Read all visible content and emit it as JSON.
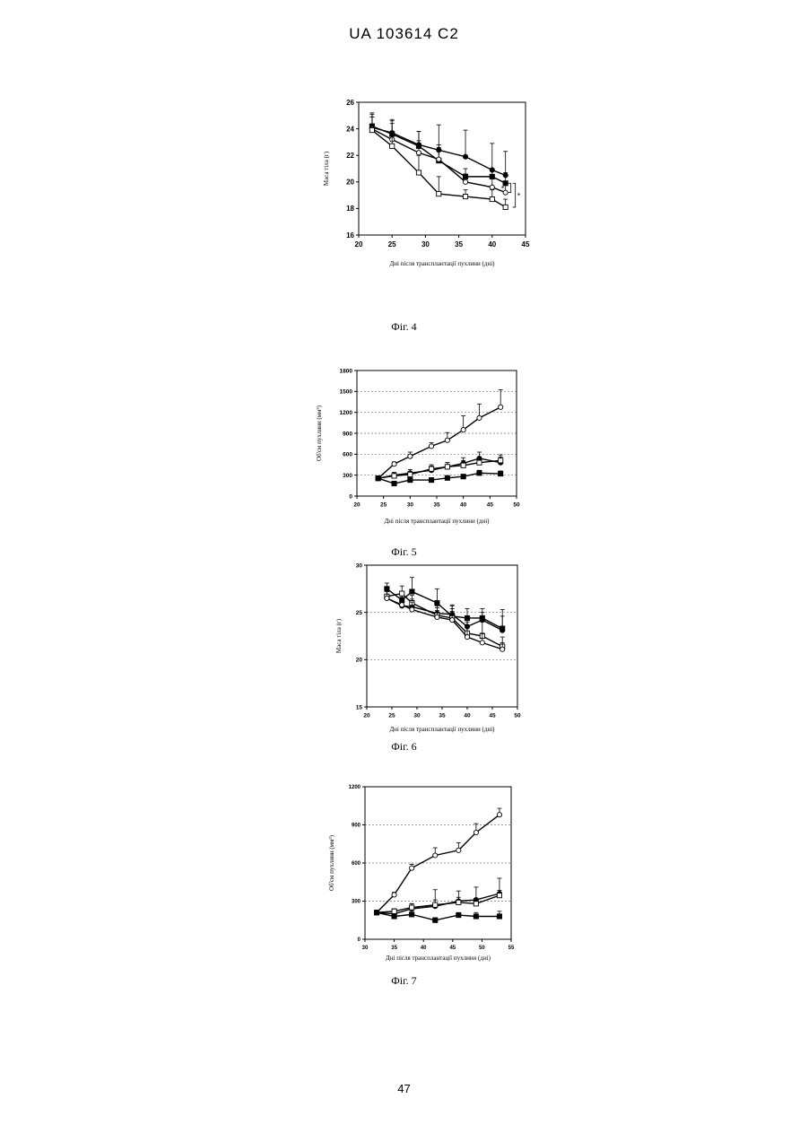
{
  "header": "UA   103614   C2",
  "page_number": "47",
  "chart_data": [
    {
      "type": "line",
      "caption": "Фіг. 4",
      "xlabel": "Дні після трансплантації пухлини (дні)",
      "ylabel": "Маса тіла   (г)",
      "xlim": [
        20,
        45
      ],
      "ylim": [
        16,
        26
      ],
      "xticks": [
        20,
        25,
        30,
        35,
        40,
        45
      ],
      "yticks": [
        16,
        18,
        20,
        22,
        24,
        26
      ],
      "grid": false,
      "annotations": [
        "*",
        "*"
      ],
      "series": [
        {
          "marker": "filled-circle",
          "x": [
            22,
            25,
            29,
            32,
            36,
            40,
            42
          ],
          "y": [
            24.1,
            23.7,
            22.8,
            22.4,
            21.9,
            20.9,
            20.5
          ],
          "err": [
            0.8,
            1.0,
            1.0,
            1.9,
            2.0,
            2.0,
            1.8
          ]
        },
        {
          "marker": "filled-square",
          "x": [
            22,
            25,
            29,
            32,
            36,
            40,
            42
          ],
          "y": [
            24.2,
            23.6,
            22.7,
            21.6,
            20.4,
            20.4,
            19.9
          ],
          "err": [
            0.9,
            1.0,
            1.1,
            1.0,
            0.6,
            0.6,
            0.8
          ]
        },
        {
          "marker": "open-circle",
          "x": [
            22,
            25,
            29,
            32,
            36,
            40,
            42
          ],
          "y": [
            24.0,
            23.2,
            22.2,
            21.7,
            20.0,
            19.6,
            19.2
          ],
          "err": [
            0.9,
            1.2,
            0.9,
            1.1,
            0.6,
            0.7,
            0.7
          ]
        },
        {
          "marker": "open-square",
          "x": [
            22,
            25,
            29,
            32,
            36,
            40,
            42
          ],
          "y": [
            23.9,
            22.7,
            20.7,
            19.1,
            18.9,
            18.7,
            18.1
          ],
          "err": [
            1.3,
            1.1,
            1.3,
            1.3,
            0.5,
            0.7,
            0.6
          ]
        }
      ]
    },
    {
      "type": "line",
      "caption": "Фіг. 5",
      "xlabel": "Дні після трансплантації пухлини (дні)",
      "ylabel": "Об'єм пухлини   (мм³)",
      "xlim": [
        20,
        50
      ],
      "ylim": [
        0,
        1800
      ],
      "xticks": [
        20,
        25,
        30,
        35,
        40,
        45,
        50
      ],
      "yticks": [
        0,
        300,
        600,
        900,
        1200,
        1500,
        1800
      ],
      "grid": true,
      "series": [
        {
          "marker": "open-circle",
          "x": [
            24,
            27,
            30,
            34,
            37,
            40,
            43,
            47
          ],
          "y": [
            255,
            460,
            570,
            715,
            800,
            950,
            1120,
            1275
          ],
          "err": [
            0,
            30,
            60,
            50,
            110,
            200,
            200,
            250
          ]
        },
        {
          "marker": "filled-circle",
          "x": [
            24,
            27,
            30,
            34,
            37,
            40,
            43,
            47
          ],
          "y": [
            255,
            300,
            330,
            370,
            420,
            470,
            540,
            480
          ],
          "err": [
            0,
            40,
            50,
            60,
            60,
            80,
            90,
            80
          ]
        },
        {
          "marker": "open-square",
          "x": [
            24,
            27,
            30,
            34,
            37,
            40,
            43,
            47
          ],
          "y": [
            255,
            290,
            310,
            390,
            420,
            440,
            480,
            510
          ],
          "err": [
            0,
            30,
            40,
            60,
            60,
            70,
            80,
            80
          ]
        },
        {
          "marker": "filled-square",
          "x": [
            24,
            27,
            30,
            34,
            37,
            40,
            43,
            47
          ],
          "y": [
            255,
            180,
            230,
            230,
            260,
            280,
            330,
            320
          ],
          "err": [
            0,
            20,
            25,
            30,
            30,
            30,
            40,
            40
          ]
        }
      ]
    },
    {
      "type": "line",
      "caption": "Фіг. 6",
      "xlabel": "Дні після трансплантації пухлини (дні)",
      "ylabel": "Маса тіла   (г)",
      "xlim": [
        20,
        50
      ],
      "ylim": [
        15,
        30
      ],
      "xticks": [
        20,
        25,
        30,
        35,
        40,
        45,
        50
      ],
      "yticks": [
        15,
        20,
        25,
        30
      ],
      "grid": true,
      "series": [
        {
          "marker": "filled-square",
          "x": [
            24,
            27,
            29,
            34,
            37,
            40,
            43,
            47
          ],
          "y": [
            27.5,
            26.3,
            27.2,
            26.0,
            24.6,
            24.4,
            24.4,
            23.3
          ],
          "err": [
            0.6,
            0.8,
            1.5,
            1.5,
            1.2,
            1.0,
            0.6,
            2.0
          ]
        },
        {
          "marker": "filled-circle",
          "x": [
            24,
            27,
            29,
            34,
            37,
            40,
            43,
            47
          ],
          "y": [
            26.5,
            25.7,
            25.6,
            24.9,
            24.8,
            23.5,
            24.2,
            23.1
          ],
          "err": [
            0.8,
            0.8,
            0.8,
            0.8,
            0.9,
            0.9,
            1.2,
            1.5
          ]
        },
        {
          "marker": "open-square",
          "x": [
            24,
            27,
            29,
            34,
            37,
            40,
            43,
            47
          ],
          "y": [
            26.7,
            27.0,
            26.0,
            24.7,
            24.4,
            22.8,
            22.5,
            21.4
          ],
          "err": [
            0.7,
            0.8,
            0.8,
            0.8,
            1.0,
            1.2,
            1.5,
            1.0
          ]
        },
        {
          "marker": "open-circle",
          "x": [
            24,
            27,
            29,
            34,
            37,
            40,
            43,
            47
          ],
          "y": [
            26.5,
            25.8,
            25.3,
            24.5,
            24.2,
            22.4,
            21.8,
            21.1
          ],
          "err": [
            0.7,
            0.8,
            0.8,
            0.7,
            0.9,
            1.2,
            1.0,
            0.7
          ]
        }
      ]
    },
    {
      "type": "line",
      "caption": "Фіг. 7",
      "xlabel": "Дні після трансплантації пухлини (дні)",
      "ylabel": "Об'єм пухлини   (мм³)",
      "xlim": [
        30,
        55
      ],
      "ylim": [
        0,
        1200
      ],
      "xticks": [
        30,
        35,
        40,
        45,
        50,
        55
      ],
      "yticks": [
        0,
        300,
        600,
        900,
        1200
      ],
      "ytick_labels": [
        "0",
        "300",
        "600",
        "900",
        "1200"
      ],
      "grid": true,
      "series": [
        {
          "marker": "open-circle",
          "x": [
            32,
            35,
            38,
            42,
            46,
            49,
            53
          ],
          "y": [
            210,
            350,
            560,
            660,
            700,
            840,
            980
          ],
          "err": [
            0,
            20,
            30,
            60,
            60,
            70,
            50
          ]
        },
        {
          "marker": "filled-circle",
          "x": [
            32,
            35,
            38,
            42,
            46,
            49,
            53
          ],
          "y": [
            210,
            200,
            240,
            260,
            300,
            310,
            360
          ],
          "err": [
            0,
            20,
            40,
            130,
            80,
            100,
            120
          ]
        },
        {
          "marker": "open-square",
          "x": [
            32,
            35,
            38,
            42,
            46,
            49,
            53
          ],
          "y": [
            210,
            220,
            250,
            270,
            290,
            280,
            345
          ],
          "err": [
            0,
            20,
            30,
            40,
            40,
            40,
            40
          ]
        },
        {
          "marker": "filled-square",
          "x": [
            32,
            35,
            38,
            42,
            46,
            49,
            53
          ],
          "y": [
            210,
            180,
            195,
            150,
            190,
            180,
            180
          ],
          "err": [
            0,
            20,
            30,
            20,
            20,
            30,
            40
          ]
        }
      ]
    }
  ]
}
